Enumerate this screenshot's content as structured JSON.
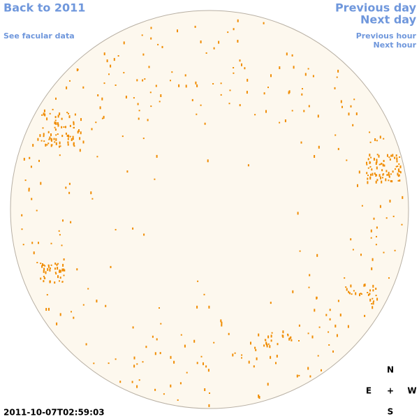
{
  "nav": {
    "back": "Back to 2011",
    "facular": "See facular data",
    "previous_day": "Previous day",
    "next_day": "Next day",
    "previous_hour": "Previous hour",
    "next_hour": "Next hour"
  },
  "timestamp": "2011-10-07T02:59:03",
  "compass": {
    "north": "N",
    "east": "E",
    "center": "+",
    "west": "W",
    "south": "S"
  }
}
